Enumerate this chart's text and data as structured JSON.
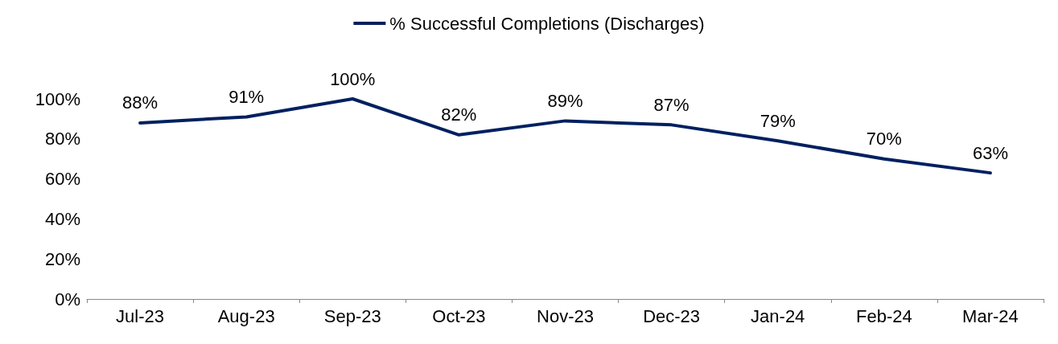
{
  "chart_data": {
    "type": "line",
    "categories": [
      "Jul-23",
      "Aug-23",
      "Sep-23",
      "Oct-23",
      "Nov-23",
      "Dec-23",
      "Jan-24",
      "Feb-24",
      "Mar-24"
    ],
    "series": [
      {
        "name": "% Successful Completions (Discharges)",
        "color": "#002060",
        "values": [
          88,
          91,
          100,
          82,
          89,
          87,
          79,
          70,
          63
        ],
        "value_labels": [
          "88%",
          "91%",
          "100%",
          "82%",
          "89%",
          "87%",
          "79%",
          "70%",
          "63%"
        ]
      }
    ],
    "ylim": [
      0,
      100
    ],
    "yticks": [
      {
        "value": 0,
        "label": "0%"
      },
      {
        "value": 20,
        "label": "20%"
      },
      {
        "value": 40,
        "label": "40%"
      },
      {
        "value": 60,
        "label": "60%"
      },
      {
        "value": 80,
        "label": "80%"
      },
      {
        "value": 100,
        "label": "100%"
      }
    ],
    "grid": false,
    "legend": "top",
    "marker": "none",
    "line_style": "solid"
  }
}
